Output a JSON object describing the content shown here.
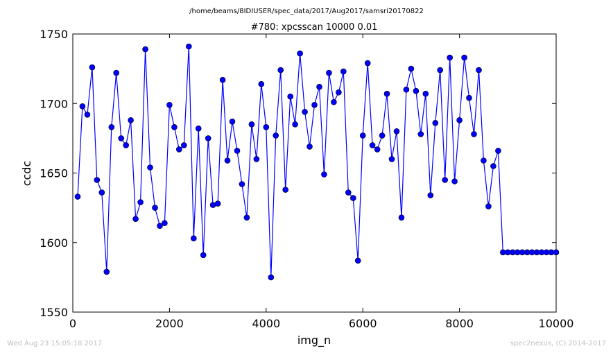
{
  "header": {
    "suptitle": "/home/beams/8IDIUSER/spec_data/2017/Aug2017/samsri20170822"
  },
  "footer": {
    "left": "Wed Aug 23 15:05:18 2017",
    "right": "spec2nexus, (C) 2014-2017"
  },
  "chart_data": {
    "type": "line",
    "title": "#780: xpcsscan 10000 0.01",
    "xlabel": "img_n",
    "ylabel": "ccdc",
    "xlim": [
      0,
      10000
    ],
    "ylim": [
      1550,
      1750
    ],
    "xticks": [
      "0",
      "2000",
      "4000",
      "6000",
      "8000",
      "10000"
    ],
    "yticks": [
      "1550",
      "1600",
      "1650",
      "1700",
      "1750"
    ],
    "grid": false,
    "legend": "none",
    "colors": {
      "line": "#0000ff",
      "marker": "#0000ff",
      "marker_edge": "#000000"
    },
    "series": [
      {
        "x": [
          100,
          200,
          300,
          400,
          500,
          600,
          700,
          800,
          900,
          1000,
          1100,
          1200,
          1300,
          1400,
          1500,
          1600,
          1700,
          1800,
          1900,
          2000,
          2100,
          2200,
          2300,
          2400,
          2500,
          2600,
          2700,
          2800,
          2900,
          3000,
          3100,
          3200,
          3300,
          3400,
          3500,
          3600,
          3700,
          3800,
          3900,
          4000,
          4100,
          4200,
          4300,
          4400,
          4500,
          4600,
          4700,
          4800,
          4900,
          5000,
          5100,
          5200,
          5300,
          5400,
          5500,
          5600,
          5700,
          5800,
          5900,
          6000,
          6100,
          6200,
          6300,
          6400,
          6500,
          6600,
          6700,
          6800,
          6900,
          7000,
          7100,
          7200,
          7300,
          7400,
          7500,
          7600,
          7700,
          7800,
          7900,
          8000,
          8100,
          8200,
          8300,
          8400,
          8500,
          8600,
          8700,
          8800,
          8900,
          9000,
          9100,
          9200,
          9300,
          9400,
          9500,
          9600,
          9700,
          9800,
          9900,
          10000
        ],
        "y": [
          1633,
          1698,
          1692,
          1726,
          1645,
          1636,
          1579,
          1683,
          1722,
          1675,
          1670,
          1688,
          1617,
          1629,
          1739,
          1654,
          1625,
          1612,
          1614,
          1699,
          1683,
          1667,
          1670,
          1741,
          1603,
          1682,
          1591,
          1675,
          1627,
          1628,
          1717,
          1659,
          1687,
          1666,
          1642,
          1618,
          1685,
          1660,
          1714,
          1683,
          1575,
          1677,
          1724,
          1638,
          1705,
          1685,
          1736,
          1694,
          1669,
          1699,
          1712,
          1649,
          1722,
          1701,
          1708,
          1723,
          1636,
          1632,
          1587,
          1677,
          1729,
          1670,
          1667,
          1677,
          1707,
          1660,
          1680,
          1618,
          1710,
          1725,
          1709,
          1678,
          1707,
          1634,
          1686,
          1724,
          1645,
          1733,
          1644,
          1688,
          1733,
          1704,
          1678,
          1724,
          1659,
          1626,
          1655,
          1666,
          1593,
          1593,
          1593,
          1593,
          1593,
          1593,
          1593,
          1593,
          1593,
          1593,
          1593,
          1593
        ]
      }
    ]
  }
}
